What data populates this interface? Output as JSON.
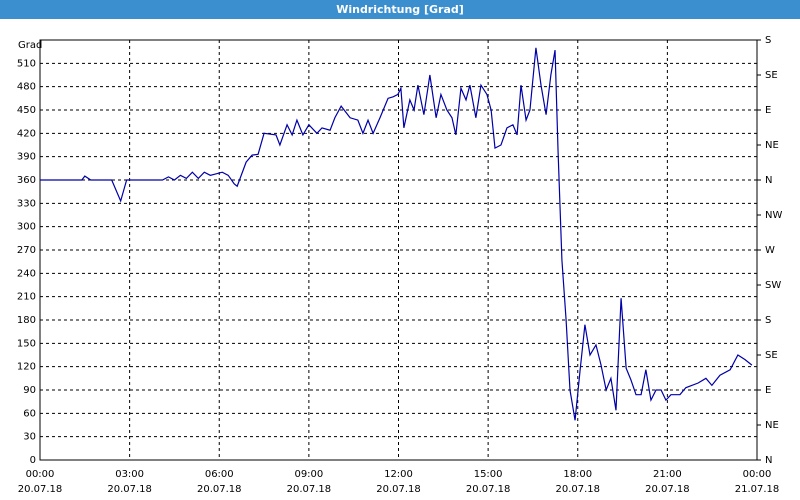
{
  "chart_data": {
    "type": "line",
    "title": "Windrichtung [Grad]",
    "y_label": "Grad",
    "x": [
      0,
      1.4,
      1.5,
      1.7,
      2.4,
      2.7,
      2.9,
      4.1,
      4.3,
      4.5,
      4.7,
      4.9,
      5.1,
      5.3,
      5.5,
      5.7,
      5.9,
      6.1,
      6.3,
      6.5,
      6.6,
      6.9,
      7.1,
      7.3,
      7.5,
      7.9,
      8.03,
      8.27,
      8.44,
      8.6,
      8.8,
      9.0,
      9.27,
      9.44,
      9.71,
      9.87,
      10.08,
      10.38,
      10.64,
      10.81,
      10.98,
      11.15,
      11.38,
      11.65,
      11.82,
      11.98,
      12.08,
      12.18,
      12.38,
      12.52,
      12.65,
      12.85,
      13.05,
      13.26,
      13.42,
      13.62,
      13.79,
      13.92,
      14.09,
      14.26,
      14.39,
      14.59,
      14.76,
      14.96,
      15.1,
      15.23,
      15.43,
      15.63,
      15.83,
      15.97,
      16.1,
      16.27,
      16.4,
      16.6,
      16.77,
      16.94,
      17.1,
      17.24,
      17.34,
      17.47,
      17.61,
      17.74,
      17.91,
      18.08,
      18.24,
      18.41,
      18.61,
      18.78,
      18.95,
      19.11,
      19.28,
      19.45,
      19.62,
      19.78,
      19.95,
      20.12,
      20.28,
      20.45,
      20.62,
      20.79,
      20.95,
      21.12,
      21.42,
      21.62,
      22.03,
      22.29,
      22.49,
      22.76,
      23.1,
      23.36,
      23.6,
      23.83
    ],
    "series": [
      {
        "name": "Windrichtung",
        "color": "#0000a8",
        "values": [
          360,
          360,
          365,
          360,
          360,
          333,
          360,
          360,
          364,
          360,
          366,
          362,
          370,
          362,
          370,
          366,
          368,
          370,
          366,
          355,
          352,
          383,
          392,
          393,
          420,
          418,
          405,
          431,
          418,
          437,
          418,
          431,
          420,
          427,
          424,
          440,
          455,
          440,
          437,
          420,
          437,
          420,
          440,
          465,
          467,
          470,
          478,
          427,
          463,
          450,
          482,
          444,
          495,
          440,
          470,
          450,
          440,
          418,
          478,
          463,
          482,
          440,
          482,
          470,
          450,
          401,
          405,
          427,
          431,
          418,
          482,
          437,
          450,
          530,
          482,
          444,
          495,
          527,
          398,
          257,
          180,
          90,
          51,
          116,
          174,
          135,
          148,
          122,
          90,
          105,
          64,
          208,
          118,
          103,
          84,
          84,
          116,
          77,
          90,
          90,
          77,
          84,
          84,
          93,
          99,
          105,
          96,
          109,
          116,
          135,
          129,
          122
        ]
      }
    ],
    "xlim": [
      0,
      24
    ],
    "xticks": [
      {
        "value": 0,
        "label": "00:00 20.07.18"
      },
      {
        "value": 3,
        "label": "03:00 20.07.18"
      },
      {
        "value": 6,
        "label": "06:00 20.07.18"
      },
      {
        "value": 9,
        "label": "09:00 20.07.18"
      },
      {
        "value": 12,
        "label": "12:00 20.07.18"
      },
      {
        "value": 15,
        "label": "15:00 20.07.18"
      },
      {
        "value": 18,
        "label": "18:00 20.07.18"
      },
      {
        "value": 21,
        "label": "21:00 20.07.18"
      },
      {
        "value": 24,
        "label": "00:00 21.07.18"
      }
    ],
    "ylim": [
      0,
      540
    ],
    "yticks": [
      0,
      30,
      60,
      90,
      120,
      150,
      180,
      210,
      240,
      270,
      300,
      330,
      360,
      390,
      420,
      450,
      480,
      510
    ],
    "y2lim": [
      0,
      540
    ],
    "y2ticks": [
      {
        "value": 0,
        "label": "N"
      },
      {
        "value": 45,
        "label": "NE"
      },
      {
        "value": 90,
        "label": "E"
      },
      {
        "value": 135,
        "label": "SE"
      },
      {
        "value": 180,
        "label": "S"
      },
      {
        "value": 225,
        "label": "SW"
      },
      {
        "value": 270,
        "label": "W"
      },
      {
        "value": 315,
        "label": "NW"
      },
      {
        "value": 360,
        "label": "N"
      },
      {
        "value": 405,
        "label": "NE"
      },
      {
        "value": 450,
        "label": "E"
      },
      {
        "value": 495,
        "label": "SE"
      },
      {
        "value": 540,
        "label": "S"
      }
    ],
    "grid": true
  }
}
